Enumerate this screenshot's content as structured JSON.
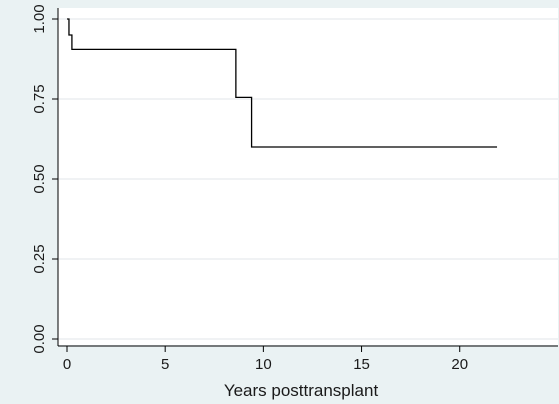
{
  "chart_data": {
    "type": "line",
    "step": true,
    "title": "",
    "xlabel": "Years posttransplant",
    "ylabel": "",
    "xlim": [
      0,
      22
    ],
    "ylim": [
      0,
      1
    ],
    "xticks": [
      0,
      5,
      10,
      15,
      20
    ],
    "yticks": [
      "0.00",
      "0.25",
      "0.50",
      "0.75",
      "1.00"
    ],
    "grid": "horizontal",
    "series": [
      {
        "x": [
          0,
          0.1,
          0.25,
          8.6,
          9.4,
          21.9
        ],
        "y": [
          1.0,
          0.95,
          0.905,
          0.755,
          0.6,
          0.6
        ]
      }
    ],
    "colors": {
      "background": "#eaf2f3",
      "plot_background": "#ffffff",
      "line": "#000000",
      "grid": "#e1e6e8"
    }
  }
}
